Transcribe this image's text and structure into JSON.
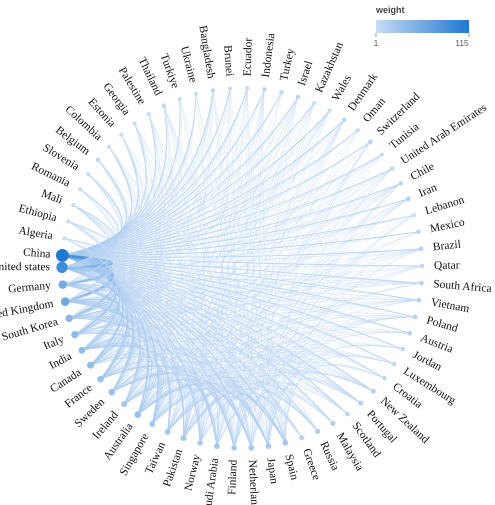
{
  "chart_data": {
    "type": "chord",
    "legend": {
      "title": "weight",
      "min_label": "1",
      "max_label": "115",
      "min": 1,
      "max": 115,
      "color_low": "#c6dcf5",
      "color_high": "#1f78d1"
    },
    "nodes": [
      {
        "name": "China",
        "weight": 115
      },
      {
        "name": "Algeria",
        "weight": 1
      },
      {
        "name": "Ethiopia",
        "weight": 1
      },
      {
        "name": "Mali",
        "weight": 1
      },
      {
        "name": "Romania",
        "weight": 1
      },
      {
        "name": "Slovenia",
        "weight": 1
      },
      {
        "name": "Belgium",
        "weight": 2
      },
      {
        "name": "Colombia",
        "weight": 1
      },
      {
        "name": "Estonia",
        "weight": 1
      },
      {
        "name": "Georgia",
        "weight": 1
      },
      {
        "name": "Palestine",
        "weight": 1
      },
      {
        "name": "Thailand",
        "weight": 2
      },
      {
        "name": "Turkiye",
        "weight": 1
      },
      {
        "name": "Ukraine",
        "weight": 1
      },
      {
        "name": "Bangladesh",
        "weight": 2
      },
      {
        "name": "Brunei",
        "weight": 1
      },
      {
        "name": "Ecuador",
        "weight": 1
      },
      {
        "name": "Indonesia",
        "weight": 2
      },
      {
        "name": "Turkey",
        "weight": 2
      },
      {
        "name": "Israel",
        "weight": 2
      },
      {
        "name": "Kazakhstan",
        "weight": 1
      },
      {
        "name": "Wales",
        "weight": 1
      },
      {
        "name": "Denmark",
        "weight": 2
      },
      {
        "name": "Oman",
        "weight": 1
      },
      {
        "name": "Switzerland",
        "weight": 3
      },
      {
        "name": "Tunisia",
        "weight": 1
      },
      {
        "name": "United Arab Emirates",
        "weight": 2
      },
      {
        "name": "Chile",
        "weight": 2
      },
      {
        "name": "Iran",
        "weight": 3
      },
      {
        "name": "Lebanon",
        "weight": 1
      },
      {
        "name": "Mexico",
        "weight": 2
      },
      {
        "name": "Brazil",
        "weight": 3
      },
      {
        "name": "Qatar",
        "weight": 2
      },
      {
        "name": "South Africa",
        "weight": 3
      },
      {
        "name": "Vietnam",
        "weight": 3
      },
      {
        "name": "Poland",
        "weight": 3
      },
      {
        "name": "Austria",
        "weight": 3
      },
      {
        "name": "Jordan",
        "weight": 2
      },
      {
        "name": "Luxembourg",
        "weight": 2
      },
      {
        "name": "Croatia",
        "weight": 2
      },
      {
        "name": "New Zealand",
        "weight": 4
      },
      {
        "name": "Portugal",
        "weight": 4
      },
      {
        "name": "Scotland",
        "weight": 3
      },
      {
        "name": "Malaysia",
        "weight": 5
      },
      {
        "name": "Russia",
        "weight": 5
      },
      {
        "name": "Greece",
        "weight": 4
      },
      {
        "name": "Spain",
        "weight": 8
      },
      {
        "name": "Japan",
        "weight": 8
      },
      {
        "name": "Netherlands",
        "weight": 9
      },
      {
        "name": "Finland",
        "weight": 7
      },
      {
        "name": "Saudi Arabia",
        "weight": 8
      },
      {
        "name": "Norway",
        "weight": 7
      },
      {
        "name": "Pakistan",
        "weight": 9
      },
      {
        "name": "Taiwan",
        "weight": 9
      },
      {
        "name": "Singapore",
        "weight": 10
      },
      {
        "name": "Australia",
        "weight": 14
      },
      {
        "name": "Ireland",
        "weight": 10
      },
      {
        "name": "Sweden",
        "weight": 14
      },
      {
        "name": "France",
        "weight": 15
      },
      {
        "name": "Canada",
        "weight": 18
      },
      {
        "name": "India",
        "weight": 17
      },
      {
        "name": "Italy",
        "weight": 20
      },
      {
        "name": "South Korea",
        "weight": 22
      },
      {
        "name": "United Kingdom",
        "weight": 38
      },
      {
        "name": "Germany",
        "weight": 35
      },
      {
        "name": "United states",
        "weight": 80
      }
    ]
  }
}
